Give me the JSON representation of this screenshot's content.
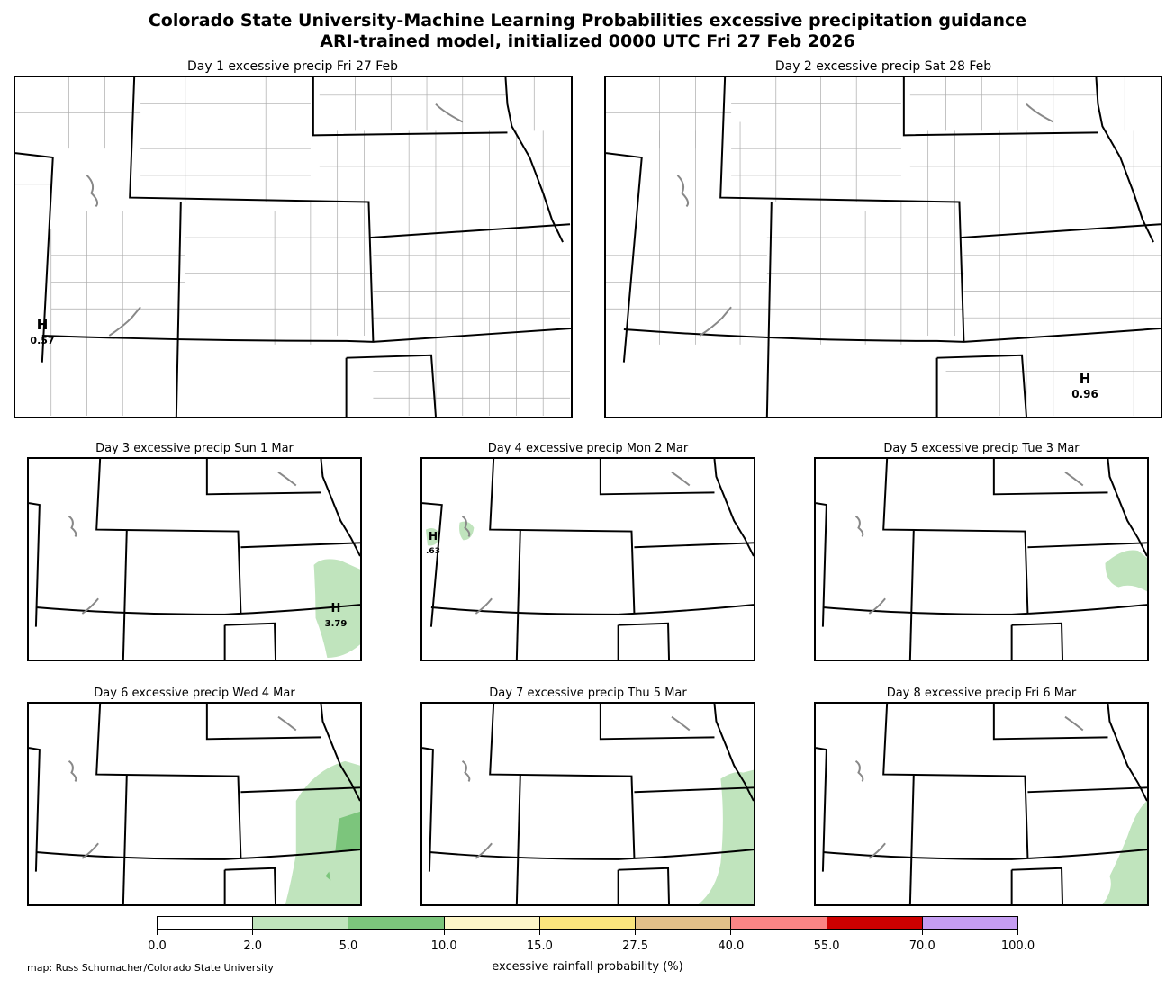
{
  "title_line1": "Colorado State University-Machine Learning Probabilities excessive precipitation guidance",
  "title_line2": "ARI-trained model, initialized 0000 UTC Fri 27 Feb 2026",
  "panels": [
    {
      "title": "Day 1 excessive precip  Fri 27 Feb",
      "max_label": "H",
      "max_value": "0.57"
    },
    {
      "title": "Day 2 excessive precip  Sat 28 Feb",
      "max_label": "H",
      "max_value": "0.96"
    },
    {
      "title": "Day 3 excessive precip  Sun 1 Mar",
      "max_label": "H",
      "max_value": "3.79"
    },
    {
      "title": "Day 4 excessive precip  Mon 2 Mar",
      "max_label": "H",
      "max_value": ".63"
    },
    {
      "title": "Day 5 excessive precip  Tue 3 Mar"
    },
    {
      "title": "Day 6 excessive precip  Wed 4 Mar"
    },
    {
      "title": "Day 7 excessive precip  Thu 5 Mar"
    },
    {
      "title": "Day 8 excessive precip  Fri 6 Mar"
    }
  ],
  "colorbar": {
    "label": "excessive rainfall probability (%)",
    "ticks": [
      "0.0",
      "2.0",
      "5.0",
      "10.0",
      "15.0",
      "27.5",
      "40.0",
      "55.0",
      "70.0",
      "100.0"
    ],
    "colors": [
      "#ffffff",
      "#c0e4bd",
      "#7cc57c",
      "#fdf6c8",
      "#fbe57d",
      "#e3c089",
      "#fb8585",
      "#cd0000",
      "#c59df2"
    ]
  },
  "credit": "map: Russ Schumacher/Colorado State University"
}
